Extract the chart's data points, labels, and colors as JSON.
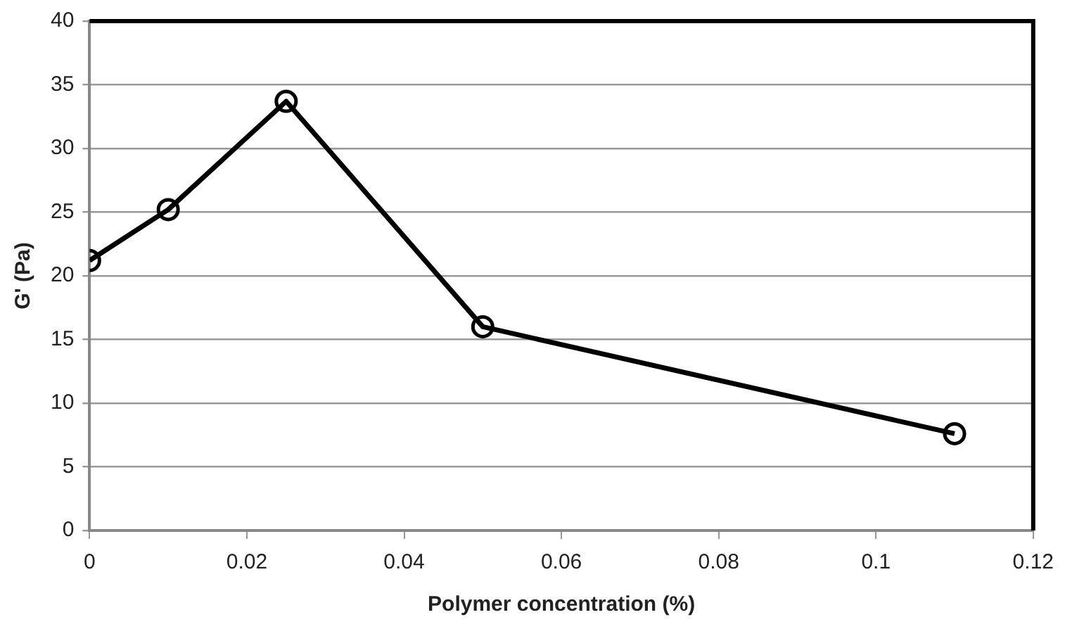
{
  "chart_data": {
    "type": "line",
    "xlabel": "Polymer concentration (%)",
    "ylabel": "G' (Pa)",
    "x": [
      0,
      0.01,
      0.025,
      0.05,
      0.11
    ],
    "series": [
      {
        "color": "#000000",
        "values": [
          21.2,
          25.2,
          33.7,
          16.0,
          7.6
        ]
      }
    ],
    "xlim": [
      0,
      0.12
    ],
    "xticks": [
      0,
      0.02,
      0.04,
      0.06,
      0.08,
      0.1,
      0.12
    ],
    "ylim": [
      0,
      40
    ],
    "yticks": [
      0,
      5,
      10,
      15,
      20,
      25,
      30,
      35,
      40
    ],
    "grid": "y",
    "legend": false,
    "marker": "circle",
    "line_style": "solid"
  }
}
